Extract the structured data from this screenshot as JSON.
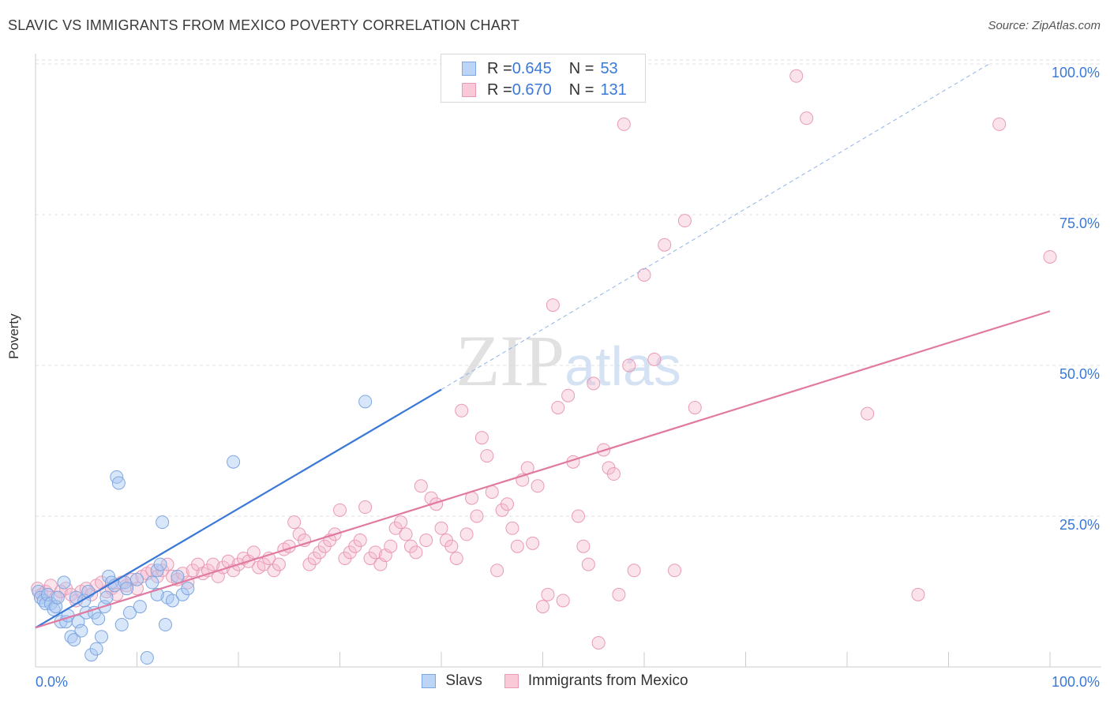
{
  "title": "SLAVIC VS IMMIGRANTS FROM MEXICO POVERTY CORRELATION CHART",
  "source": "Source: ZipAtlas.com",
  "colors": {
    "blue": "#3a78d8",
    "pink": "#e07aa0",
    "blue_fill": "#a9c8f2",
    "pink_fill": "#f6b9cd",
    "grid": "#dedede"
  },
  "legend": {
    "rows": [
      {
        "r_label": "R = ",
        "r_value": "0.645",
        "n_label": "N = ",
        "n_value": "53"
      },
      {
        "r_label": "R = ",
        "r_value": "0.670",
        "n_label": "N = ",
        "n_value": "131"
      }
    ]
  },
  "bottom_legend": {
    "items": [
      "Slavs",
      "Immigrants from Mexico"
    ]
  },
  "chart_data": {
    "type": "scatter",
    "title": "SLAVIC VS IMMIGRANTS FROM MEXICO POVERTY CORRELATION CHART",
    "xlabel": "",
    "ylabel": "Poverty",
    "xlim": [
      0,
      100
    ],
    "ylim": [
      0,
      105
    ],
    "x_tick_labels": [
      "0.0%",
      "100.0%"
    ],
    "y_tick_labels": [
      "25.0%",
      "50.0%",
      "75.0%",
      "100.0%"
    ],
    "y_ticks": [
      25,
      50,
      75,
      100
    ],
    "grid": true,
    "legend_position": "top-center",
    "watermark": "ZIPatlas",
    "series": [
      {
        "name": "Slavs",
        "color": "#3a78d8",
        "r": 0.645,
        "n": 53,
        "trend": {
          "x": [
            0,
            40
          ],
          "y": [
            6.5,
            46
          ],
          "dashed_to": [
            94,
            100
          ]
        },
        "points": [
          [
            0.3,
            12.5
          ],
          [
            0.5,
            11.5
          ],
          [
            0.8,
            11
          ],
          [
            1,
            10.5
          ],
          [
            1.2,
            12
          ],
          [
            1.5,
            10.5
          ],
          [
            1.8,
            9.5
          ],
          [
            2,
            10
          ],
          [
            2.2,
            11.5
          ],
          [
            2.5,
            7.5
          ],
          [
            2.8,
            14
          ],
          [
            3,
            7.5
          ],
          [
            3.2,
            8.5
          ],
          [
            3.5,
            5
          ],
          [
            3.8,
            4.5
          ],
          [
            4,
            11.5
          ],
          [
            4.2,
            7.5
          ],
          [
            4.5,
            6
          ],
          [
            4.8,
            11
          ],
          [
            5,
            9
          ],
          [
            5.2,
            12.5
          ],
          [
            5.5,
            2
          ],
          [
            5.8,
            9
          ],
          [
            6,
            3
          ],
          [
            6.2,
            8
          ],
          [
            6.5,
            5
          ],
          [
            6.8,
            10
          ],
          [
            7,
            11.5
          ],
          [
            7.2,
            15
          ],
          [
            7.5,
            14
          ],
          [
            7.8,
            13.5
          ],
          [
            8,
            31.5
          ],
          [
            8.2,
            30.5
          ],
          [
            8.5,
            7
          ],
          [
            8.8,
            14
          ],
          [
            9,
            13
          ],
          [
            9.3,
            9
          ],
          [
            10,
            14.5
          ],
          [
            10.3,
            10
          ],
          [
            11,
            1.5
          ],
          [
            11.5,
            14
          ],
          [
            12,
            16
          ],
          [
            12.3,
            17
          ],
          [
            12.5,
            24
          ],
          [
            12.8,
            7
          ],
          [
            13,
            11.5
          ],
          [
            13.5,
            11
          ],
          [
            14,
            15
          ],
          [
            14.5,
            12
          ],
          [
            15,
            13
          ],
          [
            12,
            12
          ],
          [
            19.5,
            34
          ],
          [
            32.5,
            44
          ]
        ]
      },
      {
        "name": "Immigrants from Mexico",
        "color": "#e07aa0",
        "r": 0.67,
        "n": 131,
        "trend": {
          "x": [
            0,
            100
          ],
          "y": [
            6.5,
            59
          ]
        },
        "points": [
          [
            0.2,
            13
          ],
          [
            0.6,
            12
          ],
          [
            1,
            12.5
          ],
          [
            1.5,
            13.5
          ],
          [
            2,
            11.5
          ],
          [
            2.5,
            12.5
          ],
          [
            3,
            13
          ],
          [
            3.5,
            12
          ],
          [
            4,
            11
          ],
          [
            4.5,
            12.5
          ],
          [
            5,
            13
          ],
          [
            5.5,
            12
          ],
          [
            6,
            13.5
          ],
          [
            6.5,
            14
          ],
          [
            7,
            12.5
          ],
          [
            7.5,
            13
          ],
          [
            8,
            12
          ],
          [
            8.5,
            14
          ],
          [
            9,
            13.5
          ],
          [
            9.5,
            14.5
          ],
          [
            10,
            13
          ],
          [
            10.5,
            15
          ],
          [
            11,
            15.5
          ],
          [
            11.5,
            16
          ],
          [
            12,
            15
          ],
          [
            12.5,
            16
          ],
          [
            13,
            17
          ],
          [
            13.5,
            15
          ],
          [
            14,
            14.5
          ],
          [
            14.5,
            15.5
          ],
          [
            15,
            14
          ],
          [
            15.5,
            16
          ],
          [
            16,
            17
          ],
          [
            16.5,
            15.5
          ],
          [
            17,
            16
          ],
          [
            17.5,
            17
          ],
          [
            18,
            15
          ],
          [
            18.5,
            16.5
          ],
          [
            19,
            17.5
          ],
          [
            19.5,
            16
          ],
          [
            20,
            17
          ],
          [
            20.5,
            18
          ],
          [
            21,
            17.5
          ],
          [
            21.5,
            19
          ],
          [
            22,
            16.5
          ],
          [
            22.5,
            17
          ],
          [
            23,
            18
          ],
          [
            23.5,
            16
          ],
          [
            24,
            17
          ],
          [
            24.5,
            19.5
          ],
          [
            25,
            20
          ],
          [
            25.5,
            24
          ],
          [
            26,
            22
          ],
          [
            26.5,
            21
          ],
          [
            27,
            17
          ],
          [
            27.5,
            18
          ],
          [
            28,
            19
          ],
          [
            28.5,
            20
          ],
          [
            29,
            21
          ],
          [
            29.5,
            22
          ],
          [
            30,
            26
          ],
          [
            30.5,
            18
          ],
          [
            31,
            19
          ],
          [
            31.5,
            20
          ],
          [
            32,
            21
          ],
          [
            32.5,
            26.5
          ],
          [
            33,
            18
          ],
          [
            33.5,
            19
          ],
          [
            34,
            17
          ],
          [
            34.5,
            18.5
          ],
          [
            35,
            20
          ],
          [
            35.5,
            23
          ],
          [
            36,
            24
          ],
          [
            36.5,
            22
          ],
          [
            37,
            20
          ],
          [
            37.5,
            19
          ],
          [
            38,
            30
          ],
          [
            38.5,
            21
          ],
          [
            39,
            28
          ],
          [
            39.5,
            27
          ],
          [
            40,
            23
          ],
          [
            40.5,
            21
          ],
          [
            41,
            20
          ],
          [
            41.5,
            18
          ],
          [
            42,
            42.5
          ],
          [
            42.5,
            22
          ],
          [
            43,
            28
          ],
          [
            43.5,
            25
          ],
          [
            44,
            38
          ],
          [
            44.5,
            35
          ],
          [
            45,
            29
          ],
          [
            45.5,
            16
          ],
          [
            46,
            26
          ],
          [
            46.5,
            27
          ],
          [
            47,
            23
          ],
          [
            47.5,
            20
          ],
          [
            48,
            31
          ],
          [
            48.5,
            33
          ],
          [
            49,
            20.5
          ],
          [
            49.5,
            30
          ],
          [
            50,
            10
          ],
          [
            50.5,
            12
          ],
          [
            51,
            60
          ],
          [
            51.5,
            43
          ],
          [
            52,
            11
          ],
          [
            52.5,
            45
          ],
          [
            53,
            34
          ],
          [
            53.5,
            25
          ],
          [
            54,
            20
          ],
          [
            54.5,
            17
          ],
          [
            55,
            47
          ],
          [
            55.5,
            4
          ],
          [
            56,
            36
          ],
          [
            56.5,
            33
          ],
          [
            57,
            32
          ],
          [
            57.5,
            12
          ],
          [
            58,
            90
          ],
          [
            58.5,
            50
          ],
          [
            59,
            16
          ],
          [
            60,
            65
          ],
          [
            61,
            51
          ],
          [
            62,
            70
          ],
          [
            63,
            16
          ],
          [
            64,
            74
          ],
          [
            65,
            43
          ],
          [
            75,
            98
          ],
          [
            76,
            91
          ],
          [
            87,
            12
          ],
          [
            95,
            90
          ],
          [
            100,
            68
          ],
          [
            82,
            42
          ]
        ]
      }
    ]
  }
}
